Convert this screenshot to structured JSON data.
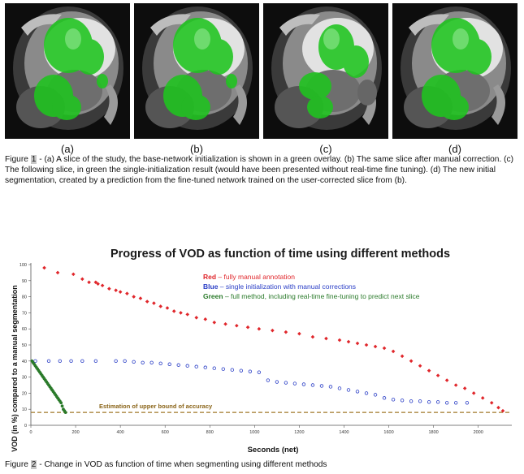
{
  "panels": [
    {
      "label": "(a)",
      "variant": "a"
    },
    {
      "label": "(b)",
      "variant": "b"
    },
    {
      "label": "(c)",
      "variant": "c"
    },
    {
      "label": "(d)",
      "variant": "d"
    }
  ],
  "figure1": {
    "prefix": "Figure ",
    "number": "1",
    "text": " - (a) A slice of the study, the base-network initialization is shown in a green overlay. (b) The same slice after manual correction. (c) The following slice, in green the single-initialization result (would have been presented without real-time fine tuning). (d) The new initial segmentation, created by a prediction from the fine-tuned network trained on the user-corrected slice from (b)."
  },
  "figure2": {
    "prefix": "Figure ",
    "number": "2",
    "text": " - Change in VOD as function of time when segmenting using different methods"
  },
  "colors": {
    "red": "#e0262b",
    "blue": "#2a3ec6",
    "green": "#2a7a2a",
    "bound": "#a0792a",
    "overlay": "#1fc51f"
  },
  "chart_data": {
    "type": "scatter",
    "title": "Progress of VOD as function of time using different methods",
    "xlabel": "Seconds (net)",
    "ylabel": "VOD  (in %) compared to a manual segmentation",
    "xlim": [
      0,
      2150
    ],
    "ylim": [
      0,
      100
    ],
    "xticks": [
      0,
      200,
      400,
      600,
      800,
      1000,
      1200,
      1400,
      1600,
      1800,
      2000
    ],
    "yticks": [
      0,
      10,
      20,
      30,
      40,
      50,
      60,
      70,
      80,
      90,
      100
    ],
    "legend": [
      {
        "key": "Red",
        "desc": " – fully manual annotation",
        "color": "#e0262b"
      },
      {
        "key": "Blue",
        "desc": " – single initialization with manual corrections",
        "color": "#2a3ec6"
      },
      {
        "key": "Green",
        "desc": " – full method, including real-time fine-tuning to predict next slice",
        "color": "#2a7a2a"
      }
    ],
    "bound_label": "Estimation of upper bound of accuracy",
    "bound_value": 8,
    "series": [
      {
        "color": "#e0262b",
        "marker": "diamond",
        "x": [
          60,
          120,
          190,
          230,
          260,
          290,
          300,
          320,
          350,
          380,
          400,
          430,
          460,
          490,
          520,
          550,
          580,
          610,
          640,
          670,
          700,
          740,
          780,
          820,
          870,
          920,
          970,
          1020,
          1080,
          1140,
          1200,
          1260,
          1320,
          1380,
          1420,
          1460,
          1500,
          1540,
          1580,
          1620,
          1660,
          1700,
          1740,
          1780,
          1820,
          1860,
          1900,
          1940,
          1980,
          2020,
          2060,
          2090,
          2110
        ],
        "y": [
          98,
          95,
          94,
          91,
          89,
          89,
          88,
          87,
          85,
          84,
          83,
          82,
          80,
          79,
          77,
          76,
          74,
          73,
          71,
          70,
          69,
          67,
          66,
          64,
          63,
          62,
          61,
          60,
          59,
          58,
          57,
          55,
          54,
          53,
          52,
          51,
          50,
          49,
          48,
          46,
          43,
          40,
          37,
          34,
          31,
          28,
          25,
          23,
          20,
          17,
          14,
          11,
          9
        ]
      },
      {
        "color": "#2a3ec6",
        "marker": "circle",
        "x": [
          20,
          80,
          130,
          180,
          230,
          290,
          380,
          420,
          460,
          500,
          540,
          580,
          620,
          660,
          700,
          740,
          780,
          820,
          860,
          900,
          940,
          980,
          1020,
          1060,
          1100,
          1140,
          1180,
          1220,
          1260,
          1300,
          1340,
          1380,
          1420,
          1460,
          1500,
          1540,
          1580,
          1620,
          1660,
          1700,
          1740,
          1780,
          1820,
          1860,
          1900,
          1950
        ],
        "y": [
          40,
          40,
          40,
          40,
          40,
          40,
          40,
          40,
          39.5,
          39,
          39,
          38.5,
          38,
          37.5,
          37,
          36.5,
          36,
          35.5,
          35,
          34.5,
          34,
          33.5,
          33,
          28,
          27,
          26.5,
          26,
          25.5,
          25,
          24.5,
          24,
          23,
          22,
          21,
          20,
          19,
          17,
          16,
          15.5,
          15,
          15,
          14.5,
          14.5,
          14,
          14,
          14
        ]
      },
      {
        "color": "#2a7a2a",
        "marker": "circle",
        "x": [
          5,
          10,
          15,
          20,
          25,
          30,
          35,
          40,
          45,
          50,
          55,
          60,
          65,
          70,
          75,
          80,
          85,
          90,
          95,
          100,
          105,
          110,
          115,
          120,
          125,
          130,
          135,
          140,
          145,
          150,
          155
        ],
        "y": [
          40,
          39,
          38,
          37,
          36,
          35,
          34,
          33,
          32,
          31,
          30,
          29,
          28,
          27,
          26,
          25,
          24,
          23,
          22,
          21,
          20,
          19,
          18,
          17,
          16,
          15,
          14,
          12,
          10,
          9,
          8
        ]
      }
    ]
  }
}
